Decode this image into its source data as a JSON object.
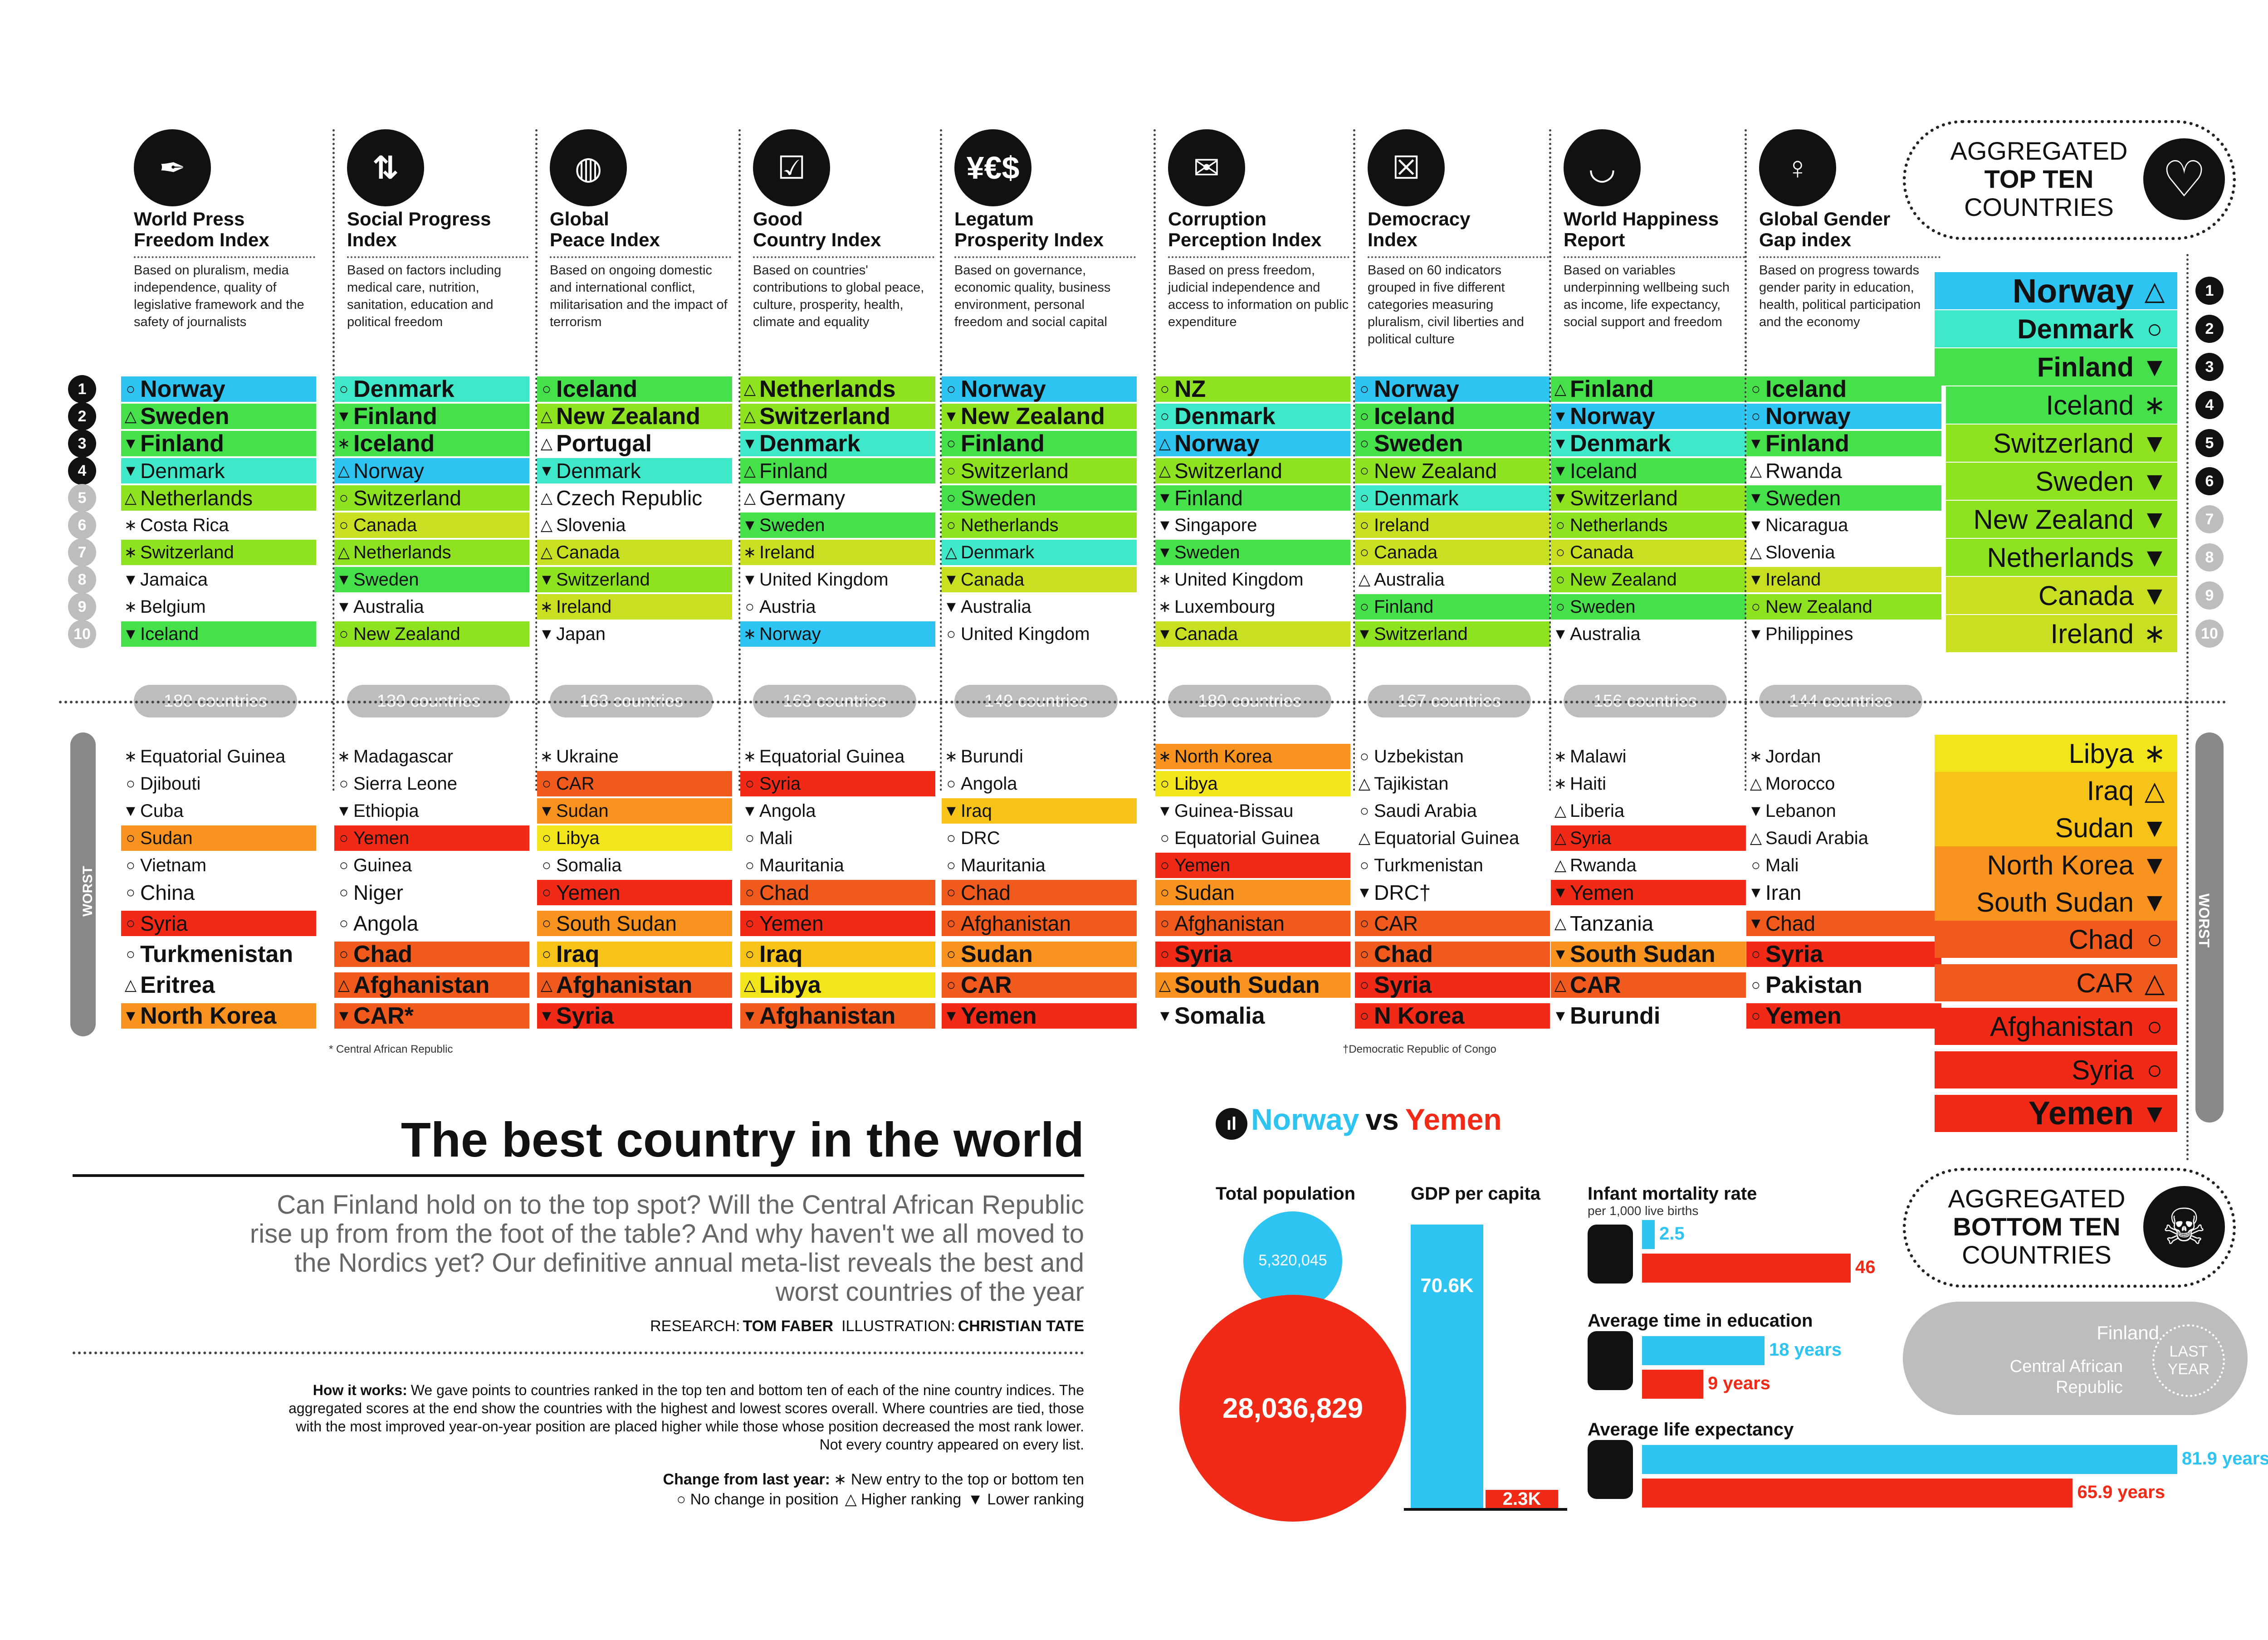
{
  "columns": [
    {
      "key": "wpfi",
      "title": "World Press\nFreedom Index",
      "desc": "Based on pluralism, media independence, quality of legislative framework and the safety of journalists",
      "icon": "pen-nib-icon",
      "count": "180 countries",
      "top": [
        {
          "n": "Norway",
          "s": "○"
        },
        {
          "n": "Sweden",
          "s": "△"
        },
        {
          "n": "Finland",
          "s": "▼"
        },
        {
          "n": "Denmark",
          "s": "▼"
        },
        {
          "n": "Netherlands",
          "s": "△"
        },
        {
          "n": "Costa Rica",
          "s": "∗"
        },
        {
          "n": "Switzerland",
          "s": "∗"
        },
        {
          "n": "Jamaica",
          "s": "▼"
        },
        {
          "n": "Belgium",
          "s": "∗"
        },
        {
          "n": "Iceland",
          "s": "▼"
        }
      ],
      "bottom": [
        {
          "n": "Equatorial Guinea",
          "s": "∗"
        },
        {
          "n": "Djibouti",
          "s": "○"
        },
        {
          "n": "Cuba",
          "s": "▼"
        },
        {
          "n": "Sudan",
          "s": "○"
        },
        {
          "n": "Vietnam",
          "s": "○"
        },
        {
          "n": "China",
          "s": "○"
        },
        {
          "n": "Syria",
          "s": "○"
        },
        {
          "n": "Turkmenistan",
          "s": "○"
        },
        {
          "n": "Eritrea",
          "s": "△"
        },
        {
          "n": "North Korea",
          "s": "▼"
        }
      ]
    },
    {
      "key": "spi",
      "title": "Social Progress\nIndex",
      "desc": "Based on factors including medical care, nutrition, sanitation, education and political freedom",
      "icon": "people-arrows-icon",
      "count": "130 countries",
      "top": [
        {
          "n": "Denmark",
          "s": "○"
        },
        {
          "n": "Finland",
          "s": "▼"
        },
        {
          "n": "Iceland",
          "s": "∗"
        },
        {
          "n": "Norway",
          "s": "△"
        },
        {
          "n": "Switzerland",
          "s": "○"
        },
        {
          "n": "Canada",
          "s": "○"
        },
        {
          "n": "Netherlands",
          "s": "△"
        },
        {
          "n": "Sweden",
          "s": "▼"
        },
        {
          "n": "Australia",
          "s": "▼"
        },
        {
          "n": "New Zealand",
          "s": "○"
        }
      ],
      "bottom": [
        {
          "n": "Madagascar",
          "s": "∗"
        },
        {
          "n": "Sierra Leone",
          "s": "○"
        },
        {
          "n": "Ethiopia",
          "s": "▼"
        },
        {
          "n": "Yemen",
          "s": "○"
        },
        {
          "n": "Guinea",
          "s": "○"
        },
        {
          "n": "Niger",
          "s": "○"
        },
        {
          "n": "Angola",
          "s": "○"
        },
        {
          "n": "Chad",
          "s": "○"
        },
        {
          "n": "Afghanistan",
          "s": "△"
        },
        {
          "n": "CAR*",
          "s": "▼"
        }
      ]
    },
    {
      "key": "gpi",
      "title": "Global\nPeace Index",
      "desc": "Based on ongoing domestic and international conflict, militarisation and the impact of terrorism",
      "icon": "globe-icon",
      "count": "163 countries",
      "top": [
        {
          "n": "Iceland",
          "s": "○"
        },
        {
          "n": "New Zealand",
          "s": "△"
        },
        {
          "n": "Portugal",
          "s": "△"
        },
        {
          "n": "Denmark",
          "s": "▼"
        },
        {
          "n": "Czech Republic",
          "s": "△"
        },
        {
          "n": "Slovenia",
          "s": "△"
        },
        {
          "n": "Canada",
          "s": "△"
        },
        {
          "n": "Switzerland",
          "s": "▼"
        },
        {
          "n": "Ireland",
          "s": "∗"
        },
        {
          "n": "Japan",
          "s": "▼"
        }
      ],
      "bottom": [
        {
          "n": "Ukraine",
          "s": "∗"
        },
        {
          "n": "CAR",
          "s": "○"
        },
        {
          "n": "Sudan",
          "s": "▼"
        },
        {
          "n": "Libya",
          "s": "○"
        },
        {
          "n": "Somalia",
          "s": "○"
        },
        {
          "n": "Yemen",
          "s": "○"
        },
        {
          "n": "South Sudan",
          "s": "○"
        },
        {
          "n": "Iraq",
          "s": "○"
        },
        {
          "n": "Afghanistan",
          "s": "△"
        },
        {
          "n": "Syria",
          "s": "▼"
        }
      ]
    },
    {
      "key": "gci",
      "title": "Good\nCountry Index",
      "desc": "Based on countries' contributions to global peace, culture, prosperity, health, climate and equality",
      "icon": "flag-check-icon",
      "count": "163 countries",
      "top": [
        {
          "n": "Netherlands",
          "s": "△"
        },
        {
          "n": "Switzerland",
          "s": "△"
        },
        {
          "n": "Denmark",
          "s": "▼"
        },
        {
          "n": "Finland",
          "s": "△"
        },
        {
          "n": "Germany",
          "s": "△"
        },
        {
          "n": "Sweden",
          "s": "▼"
        },
        {
          "n": "Ireland",
          "s": "∗"
        },
        {
          "n": "United Kingdom",
          "s": "▼"
        },
        {
          "n": "Austria",
          "s": "○"
        },
        {
          "n": "Norway",
          "s": "∗"
        }
      ],
      "bottom": [
        {
          "n": "Equatorial Guinea",
          "s": "∗"
        },
        {
          "n": "Syria",
          "s": "○"
        },
        {
          "n": "Angola",
          "s": "▼"
        },
        {
          "n": "Mali",
          "s": "○"
        },
        {
          "n": "Mauritania",
          "s": "○"
        },
        {
          "n": "Chad",
          "s": "○"
        },
        {
          "n": "Yemen",
          "s": "○"
        },
        {
          "n": "Iraq",
          "s": "○"
        },
        {
          "n": "Libya",
          "s": "△"
        },
        {
          "n": "Afghanistan",
          "s": "▼"
        }
      ]
    },
    {
      "key": "lpi",
      "title": "Legatum\nProsperity Index",
      "desc": "Based on governance, economic quality, business environment, personal freedom and social capital",
      "icon": "currency-icon",
      "count": "149 countries",
      "top": [
        {
          "n": "Norway",
          "s": "○"
        },
        {
          "n": "New Zealand",
          "s": "▼"
        },
        {
          "n": "Finland",
          "s": "○"
        },
        {
          "n": "Switzerland",
          "s": "○"
        },
        {
          "n": "Sweden",
          "s": "○"
        },
        {
          "n": "Netherlands",
          "s": "○"
        },
        {
          "n": "Denmark",
          "s": "△"
        },
        {
          "n": "Canada",
          "s": "▼"
        },
        {
          "n": "Australia",
          "s": "▼"
        },
        {
          "n": "United Kingdom",
          "s": "○"
        }
      ],
      "bottom": [
        {
          "n": "Burundi",
          "s": "∗"
        },
        {
          "n": "Angola",
          "s": "○"
        },
        {
          "n": "Iraq",
          "s": "▼"
        },
        {
          "n": "DRC",
          "s": "○"
        },
        {
          "n": "Mauritania",
          "s": "○"
        },
        {
          "n": "Chad",
          "s": "○"
        },
        {
          "n": "Afghanistan",
          "s": "○"
        },
        {
          "n": "Sudan",
          "s": "○"
        },
        {
          "n": "CAR",
          "s": "○"
        },
        {
          "n": "Yemen",
          "s": "▼"
        }
      ]
    },
    {
      "key": "cpi",
      "title": "Corruption\nPerception Index",
      "desc": "Based on press freedom, judicial independence and access to information on public expenditure",
      "icon": "envelope-money-icon",
      "count": "180 countries",
      "top": [
        {
          "n": "NZ",
          "s": "○"
        },
        {
          "n": "Denmark",
          "s": "○"
        },
        {
          "n": "Norway",
          "s": "△"
        },
        {
          "n": "Switzerland",
          "s": "△"
        },
        {
          "n": "Finland",
          "s": "▼"
        },
        {
          "n": "Singapore",
          "s": "▼"
        },
        {
          "n": "Sweden",
          "s": "▼"
        },
        {
          "n": "United Kingdom",
          "s": "∗"
        },
        {
          "n": "Luxembourg",
          "s": "∗"
        },
        {
          "n": "Canada",
          "s": "▼"
        }
      ],
      "bottom": [
        {
          "n": "North Korea",
          "s": "∗"
        },
        {
          "n": "Libya",
          "s": "○"
        },
        {
          "n": "Guinea-Bissau",
          "s": "▼"
        },
        {
          "n": "Equatorial Guinea",
          "s": "○"
        },
        {
          "n": "Yemen",
          "s": "○"
        },
        {
          "n": "Sudan",
          "s": "○"
        },
        {
          "n": "Afghanistan",
          "s": "○"
        },
        {
          "n": "Syria",
          "s": "○"
        },
        {
          "n": "South Sudan",
          "s": "△"
        },
        {
          "n": "Somalia",
          "s": "▼"
        }
      ]
    },
    {
      "key": "di",
      "title": "Democracy\nIndex",
      "desc": "Based on 60 indicators grouped in five different categories measuring pluralism, civil liberties and political culture",
      "icon": "ballot-box-icon",
      "count": "167 countries",
      "top": [
        {
          "n": "Norway",
          "s": "○"
        },
        {
          "n": "Iceland",
          "s": "○"
        },
        {
          "n": "Sweden",
          "s": "○"
        },
        {
          "n": "New Zealand",
          "s": "○"
        },
        {
          "n": "Denmark",
          "s": "○"
        },
        {
          "n": "Ireland",
          "s": "○"
        },
        {
          "n": "Canada",
          "s": "○"
        },
        {
          "n": "Australia",
          "s": "△"
        },
        {
          "n": "Finland",
          "s": "○"
        },
        {
          "n": "Switzerland",
          "s": "▼"
        }
      ],
      "bottom": [
        {
          "n": "Uzbekistan",
          "s": "○"
        },
        {
          "n": "Tajikistan",
          "s": "△"
        },
        {
          "n": "Saudi Arabia",
          "s": "○"
        },
        {
          "n": "Equatorial Guinea",
          "s": "△"
        },
        {
          "n": "Turkmenistan",
          "s": "○"
        },
        {
          "n": "DRC†",
          "s": "▼"
        },
        {
          "n": "CAR",
          "s": "○"
        },
        {
          "n": "Chad",
          "s": "○"
        },
        {
          "n": "Syria",
          "s": "○"
        },
        {
          "n": "N Korea",
          "s": "○"
        }
      ]
    },
    {
      "key": "whr",
      "title": "World Happiness\nReport",
      "desc": "Based on variables underpinning wellbeing such as income, life expectancy, social support and freedom",
      "icon": "smile-icon",
      "count": "156 countries",
      "top": [
        {
          "n": "Finland",
          "s": "△"
        },
        {
          "n": "Norway",
          "s": "▼"
        },
        {
          "n": "Denmark",
          "s": "▼"
        },
        {
          "n": "Iceland",
          "s": "▼"
        },
        {
          "n": "Switzerland",
          "s": "▼"
        },
        {
          "n": "Netherlands",
          "s": "○"
        },
        {
          "n": "Canada",
          "s": "○"
        },
        {
          "n": "New Zealand",
          "s": "○"
        },
        {
          "n": "Sweden",
          "s": "○"
        },
        {
          "n": "Australia",
          "s": "▼"
        }
      ],
      "bottom": [
        {
          "n": "Malawi",
          "s": "∗"
        },
        {
          "n": "Haiti",
          "s": "∗"
        },
        {
          "n": "Liberia",
          "s": "△"
        },
        {
          "n": "Syria",
          "s": "△"
        },
        {
          "n": "Rwanda",
          "s": "△"
        },
        {
          "n": "Yemen",
          "s": "▼"
        },
        {
          "n": "Tanzania",
          "s": "△"
        },
        {
          "n": "South Sudan",
          "s": "▼"
        },
        {
          "n": "CAR",
          "s": "△"
        },
        {
          "n": "Burundi",
          "s": "▼"
        }
      ]
    },
    {
      "key": "ggg",
      "title": "Global Gender\nGap index",
      "desc": "Based on progress towards gender parity in education, health, political participation and the economy",
      "icon": "female-symbol-icon",
      "count": "144 countries",
      "top": [
        {
          "n": "Iceland",
          "s": "○"
        },
        {
          "n": "Norway",
          "s": "○"
        },
        {
          "n": "Finland",
          "s": "▼"
        },
        {
          "n": "Rwanda",
          "s": "△"
        },
        {
          "n": "Sweden",
          "s": "▼"
        },
        {
          "n": "Nicaragua",
          "s": "▼"
        },
        {
          "n": "Slovenia",
          "s": "△"
        },
        {
          "n": "Ireland",
          "s": "▼"
        },
        {
          "n": "New Zealand",
          "s": "○"
        },
        {
          "n": "Philippines",
          "s": "▼"
        }
      ],
      "bottom": [
        {
          "n": "Jordan",
          "s": "∗"
        },
        {
          "n": "Morocco",
          "s": "△"
        },
        {
          "n": "Lebanon",
          "s": "▼"
        },
        {
          "n": "Saudi Arabia",
          "s": "△"
        },
        {
          "n": "Mali",
          "s": "○"
        },
        {
          "n": "Iran",
          "s": "▼"
        },
        {
          "n": "Chad",
          "s": "▼"
        },
        {
          "n": "Syria",
          "s": "○"
        },
        {
          "n": "Pakistan",
          "s": "○"
        },
        {
          "n": "Yemen",
          "s": "○"
        }
      ]
    }
  ],
  "col_notes": {
    "car": "* Central African Republic",
    "drc": "†Democratic Republic of Congo"
  },
  "rank_numbers": [
    "1",
    "2",
    "3",
    "4",
    "5",
    "6",
    "7",
    "8",
    "9",
    "10"
  ],
  "worst_label": "WORST",
  "aggregated_top": {
    "line1": "AGGREGATED",
    "line2": "TOP TEN",
    "line3": "COUNTRIES",
    "icon": "heart-icon",
    "rows": [
      {
        "n": "Norway",
        "s": "△"
      },
      {
        "n": "Denmark",
        "s": "○"
      },
      {
        "n": "Finland",
        "s": "▼"
      },
      {
        "n": "Iceland",
        "s": "∗"
      },
      {
        "n": "Switzerland",
        "s": "▼"
      },
      {
        "n": "Sweden",
        "s": "▼"
      },
      {
        "n": "New Zealand",
        "s": "▼"
      },
      {
        "n": "Netherlands",
        "s": "▼"
      },
      {
        "n": "Canada",
        "s": "▼"
      },
      {
        "n": "Ireland",
        "s": "∗"
      }
    ]
  },
  "aggregated_bottom": {
    "line1": "AGGREGATED",
    "line2": "BOTTOM TEN",
    "line3": "COUNTRIES",
    "icon": "skull-icon",
    "rows": [
      {
        "n": "Libya",
        "s": "∗"
      },
      {
        "n": "Iraq",
        "s": "△"
      },
      {
        "n": "Sudan",
        "s": "▼"
      },
      {
        "n": "North Korea",
        "s": "▼"
      },
      {
        "n": "South Sudan",
        "s": "▼"
      },
      {
        "n": "Chad",
        "s": "○"
      },
      {
        "n": "CAR",
        "s": "△"
      },
      {
        "n": "Afghanistan",
        "s": "○"
      },
      {
        "n": "Syria",
        "s": "○"
      },
      {
        "n": "Yemen",
        "s": "▼"
      }
    ]
  },
  "last_year": {
    "label": "LAST\nYEAR",
    "best": "Finland",
    "worst": "Central African\nRepublic"
  },
  "headline": "The best country in the world",
  "standfirst": "Can Finland hold on to the top spot? Will the Central African Republic rise up from from the foot of the table? And why haven't we all moved to the Nordics yet? Our definitive annual meta-list reveals the best and worst countries of the year",
  "credits": {
    "research_label": "RESEARCH:",
    "research": "TOM FABER",
    "illus_label": "ILLUSTRATION:",
    "illus": "CHRISTIAN TATE"
  },
  "how_it_works": {
    "label": "How it works:",
    "text": "We gave points to countries ranked in the top ten and bottom ten of each of the nine country indices. The aggregated scores at the end show the countries with the highest and lowest scores overall. Where countries are tied, those with the most improved year-on-year position are placed higher while those whose position decreased the most rank lower. Not every country appeared on every list."
  },
  "legend": {
    "label": "Change from last year:",
    "new": "∗ New entry to the top or bottom ten",
    "same": "○ No change in position",
    "up": "△ Higher ranking",
    "down": "▼ Lower ranking"
  },
  "versus": {
    "a": "Norway",
    "vs": "vs",
    "b": "Yemen",
    "population": {
      "title": "Total population",
      "norway": "5,320,045",
      "yemen": "28,036,829",
      "norway_value": 5320045,
      "yemen_value": 28036829
    },
    "gdp": {
      "title": "GDP per capita",
      "norway": "70.6K",
      "yemen": "2.3K",
      "norway_value": 70.6,
      "yemen_value": 2.3
    },
    "infant": {
      "title": "Infant mortality rate",
      "subtitle": "per 1,000 live births",
      "norway": "2.5",
      "yemen": "46",
      "norway_value": 2.5,
      "yemen_value": 46
    },
    "education": {
      "title": "Average time in education",
      "norway": "18 years",
      "yemen": "9 years",
      "norway_value": 18,
      "yemen_value": 9
    },
    "life": {
      "title": "Average life expectancy",
      "norway": "81.9 years",
      "yemen": "65.9 years",
      "norway_value": 81.9,
      "yemen_value": 65.9
    }
  },
  "colors": {
    "cyan": "#2ec4f1",
    "teal": "#3fe8c8",
    "green": "#45e04a",
    "lime": "#8fe21f",
    "yellowgreen": "#c8e021",
    "yellow": "#f2e51c",
    "gold": "#f7c318",
    "orange": "#f7931e",
    "redorange": "#f05a1c",
    "red": "#f02a17",
    "grey": "#bdbdbd"
  }
}
